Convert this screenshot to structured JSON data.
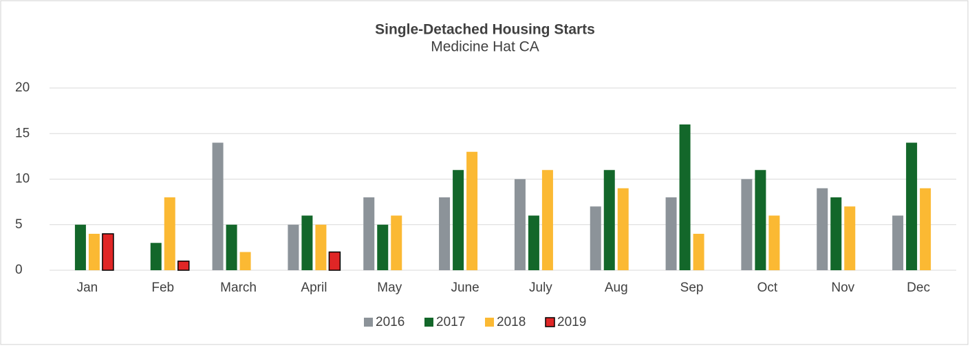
{
  "chart_data": {
    "type": "bar",
    "title": "Single-Detached Housing Starts",
    "subtitle": "Medicine Hat CA",
    "categories": [
      "Jan",
      "Feb",
      "March",
      "April",
      "May",
      "June",
      "July",
      "Aug",
      "Sep",
      "Oct",
      "Nov",
      "Dec"
    ],
    "series": [
      {
        "name": "2016",
        "color": "#8c9399",
        "values": [
          null,
          null,
          14,
          5,
          8,
          8,
          10,
          7,
          8,
          10,
          9,
          6
        ]
      },
      {
        "name": "2017",
        "color": "#13672a",
        "values": [
          5,
          3,
          5,
          6,
          5,
          11,
          6,
          11,
          16,
          11,
          8,
          14
        ]
      },
      {
        "name": "2018",
        "color": "#fbb933",
        "values": [
          4,
          8,
          2,
          5,
          6,
          13,
          11,
          9,
          4,
          6,
          7,
          9
        ]
      },
      {
        "name": "2019",
        "color": "#e02626",
        "values": [
          4,
          1,
          null,
          2,
          null,
          null,
          null,
          null,
          null,
          null,
          null,
          null
        ]
      }
    ],
    "ylim": [
      0,
      20
    ],
    "yticks": [
      0,
      5,
      10,
      15,
      20
    ],
    "grid": true,
    "legend": "bottom"
  }
}
